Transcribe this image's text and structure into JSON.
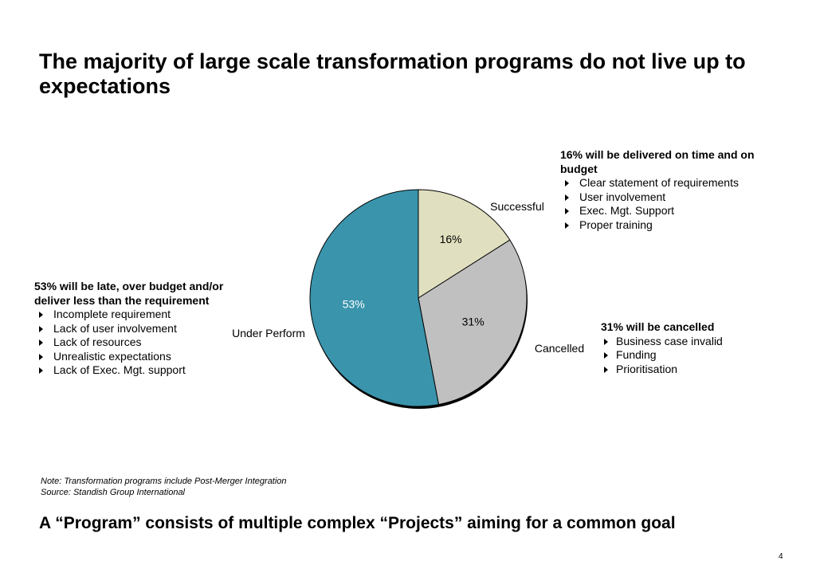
{
  "title": "The majority of large scale transformation programs do not live up to expectations",
  "chart_data": {
    "type": "pie",
    "categories": [
      "Successful",
      "Cancelled",
      "Under Perform"
    ],
    "values": [
      16,
      31,
      53
    ],
    "value_labels": [
      "16%",
      "31%",
      "53%"
    ],
    "colors": [
      "#e0e0c0",
      "#c0c0c0",
      "#3a94ac"
    ],
    "label_colors": [
      "#000000",
      "#000000",
      "#ffffff"
    ],
    "start": "12 o'clock, clockwise"
  },
  "callouts": {
    "successful": {
      "heading": "16% will be delivered on time and on budget",
      "items": [
        "Clear statement of requirements",
        "User involvement",
        "Exec. Mgt. Support",
        "Proper training"
      ]
    },
    "underperform": {
      "heading": "53% will be late, over budget and/or deliver less than the requirement",
      "items": [
        "Incomplete requirement",
        "Lack of user involvement",
        "Lack of resources",
        "Unrealistic expectations",
        "Lack of Exec. Mgt. support"
      ]
    },
    "cancelled": {
      "heading": "31% will be cancelled",
      "items": [
        "Business case invalid",
        "Funding",
        "Prioritisation"
      ]
    }
  },
  "note": {
    "line1": "Note: Transformation programs include Post-Merger Integration",
    "line2": "Source: Standish Group International"
  },
  "footer": "A “Program” consists of multiple complex “Projects” aiming for a common goal",
  "page_number": "4"
}
